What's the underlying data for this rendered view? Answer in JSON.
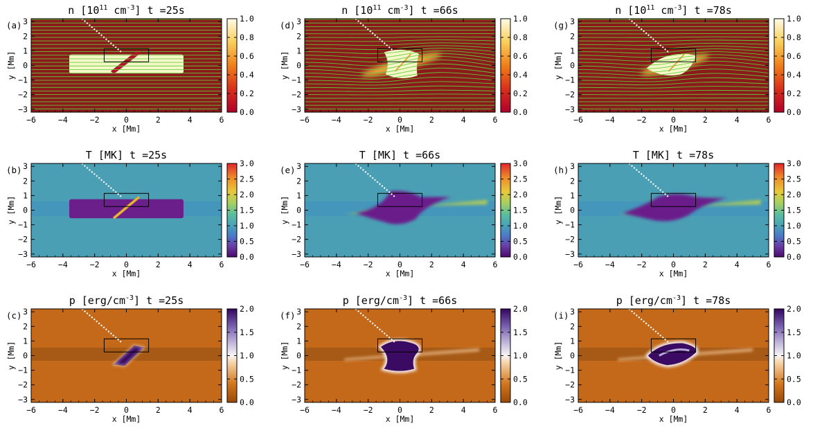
{
  "chart_data": {
    "type": "heatmap",
    "layout": "3x3 grid of panels",
    "xlabel": "x [Mm]",
    "ylabel": "y [Mm]",
    "xlim": [
      -6,
      6
    ],
    "ylim": [
      -3.2,
      3.2
    ],
    "xticks": [
      -6,
      -4,
      -2,
      0,
      2,
      4,
      6
    ],
    "yticks": [
      -3,
      -2,
      -1,
      0,
      1,
      2,
      3
    ],
    "box_region": {
      "x": [
        -1.4,
        1.4
      ],
      "y": [
        0.25,
        1.15
      ]
    },
    "dotted_line": {
      "from": [
        -2.8,
        3.2
      ],
      "to": [
        -0.3,
        0.9
      ]
    },
    "rows": [
      {
        "quantity": "n",
        "units_prefix": "[10",
        "units_exp1": "11",
        "units_mid": " cm",
        "units_exp2": "-3",
        "units_suffix": "]",
        "colormap": "red-yellow-white",
        "clim": [
          0.0,
          1.0
        ],
        "cbar_ticks": [
          "0.0",
          "0.2",
          "0.4",
          "0.6",
          "0.8",
          "1.0"
        ],
        "overlay": "magnetic field lines (green)"
      },
      {
        "quantity": "T",
        "units": "[MK]",
        "colormap": "purple-blue-green-yellow-red",
        "clim": [
          0.0,
          3.0
        ],
        "cbar_ticks": [
          "0.0",
          "0.5",
          "1.0",
          "1.5",
          "2.0",
          "2.5",
          "3.0"
        ]
      },
      {
        "quantity": "p",
        "units_prefix": "[erg/cm",
        "units_exp": "-3",
        "units_suffix": "]",
        "colormap": "brown-white-purple",
        "clim": [
          0.0,
          2.0
        ],
        "cbar_ticks": [
          "0.0",
          "0.5",
          "1.0",
          "1.5",
          "2.0"
        ]
      }
    ],
    "columns": [
      {
        "t_label": "t =25s"
      },
      {
        "t_label": "t =66s"
      },
      {
        "t_label": "t =78s"
      }
    ],
    "panels": [
      [
        "(a)",
        "(d)",
        "(g)"
      ],
      [
        "(b)",
        "(e)",
        "(h)"
      ],
      [
        "(c)",
        "(f)",
        "(i)"
      ]
    ]
  },
  "colors": {
    "n_background": "#8b1a1a",
    "n_blob": "#f5f7c8",
    "field_lines": "#5fcf3a",
    "T_background": "#4a9fb5",
    "T_blob": "#6a1f8a",
    "T_hot": "#c8d840",
    "p_background": "#c4691a",
    "p_dark": "#9a5414",
    "p_blob": "#3b0a63",
    "p_white": "#f4f0f4"
  }
}
